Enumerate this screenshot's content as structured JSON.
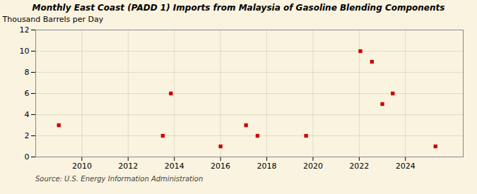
{
  "chart_data": {
    "type": "scatter",
    "title": "Monthly East Coast (PADD 1) Imports from Malaysia of Gasoline Blending Components",
    "ylabel": "Thousand Barrels per Day",
    "source": "Source: U.S. Energy Information Administration",
    "x": [
      2009.0,
      2013.5,
      2013.85,
      2016.0,
      2017.1,
      2017.6,
      2019.7,
      2022.05,
      2022.55,
      2023.0,
      2023.45,
      2025.3
    ],
    "values": [
      3,
      2,
      6,
      1,
      3,
      2,
      2,
      10,
      9,
      5,
      6,
      1
    ],
    "color": "#cc0000",
    "marker": "square",
    "xlim": [
      2008.0,
      2026.5
    ],
    "ylim": [
      0,
      12
    ],
    "xticks": [
      2010,
      2012,
      2014,
      2016,
      2018,
      2020,
      2022,
      2024
    ],
    "yticks": [
      0,
      2,
      4,
      6,
      8,
      10,
      12
    ],
    "grid": true
  }
}
